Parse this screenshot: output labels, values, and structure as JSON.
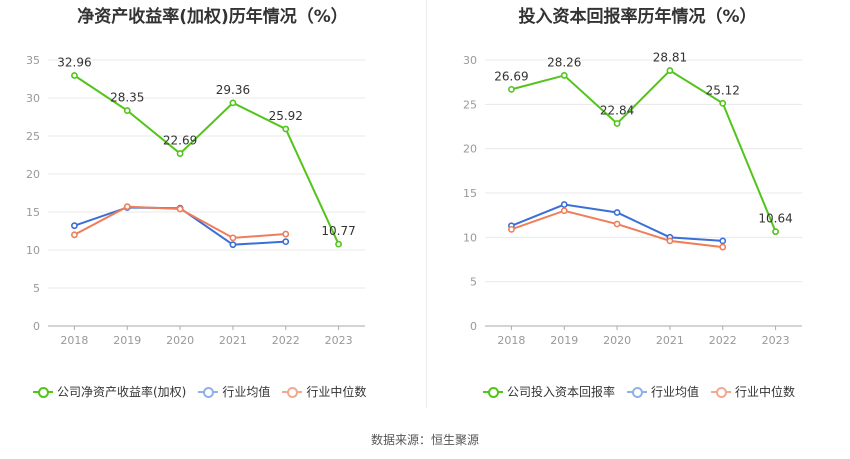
{
  "source_text": "数据来源：恒生聚源",
  "colors": {
    "company": "#52c41a",
    "industry_avg": "#3b6fd8",
    "industry_median": "#ef7d5a",
    "avg_legend": "#8fb0ea",
    "median_legend": "#f2a98f",
    "axis": "#999999",
    "grid": "#e8e8e8"
  },
  "chart_data": [
    {
      "type": "line",
      "title": "净资产收益率(加权)历年情况（%）",
      "categories": [
        "2018",
        "2019",
        "2020",
        "2021",
        "2022",
        "2023"
      ],
      "ylim": [
        0,
        35
      ],
      "yticks": [
        0,
        5,
        10,
        15,
        20,
        25,
        30,
        35
      ],
      "grid": true,
      "legend_position": "bottom",
      "series": [
        {
          "name": "公司净资产收益率(加权)",
          "values": [
            32.96,
            28.35,
            22.69,
            29.36,
            25.92,
            10.77
          ],
          "labels": [
            "32.96",
            "28.35",
            "22.69",
            "29.36",
            "25.92",
            "10.77"
          ]
        },
        {
          "name": "行业均值",
          "values": [
            13.2,
            15.6,
            15.5,
            10.7,
            11.1,
            null
          ]
        },
        {
          "name": "行业中位数",
          "values": [
            12.0,
            15.7,
            15.4,
            11.6,
            12.1,
            null
          ]
        }
      ]
    },
    {
      "type": "line",
      "title": "投入资本回报率历年情况（%）",
      "categories": [
        "2018",
        "2019",
        "2020",
        "2021",
        "2022",
        "2023"
      ],
      "ylim": [
        0,
        30
      ],
      "yticks": [
        0,
        5,
        10,
        15,
        20,
        25,
        30
      ],
      "grid": true,
      "legend_position": "bottom",
      "series": [
        {
          "name": "公司投入资本回报率",
          "values": [
            26.69,
            28.26,
            22.84,
            28.81,
            25.12,
            10.64
          ],
          "labels": [
            "26.69",
            "28.26",
            "22.84",
            "28.81",
            "25.12",
            "10.64"
          ]
        },
        {
          "name": "行业均值",
          "values": [
            11.3,
            13.7,
            12.8,
            10.0,
            9.6,
            null
          ]
        },
        {
          "name": "行业中位数",
          "values": [
            10.9,
            13.0,
            11.5,
            9.6,
            8.9,
            null
          ]
        }
      ]
    }
  ]
}
